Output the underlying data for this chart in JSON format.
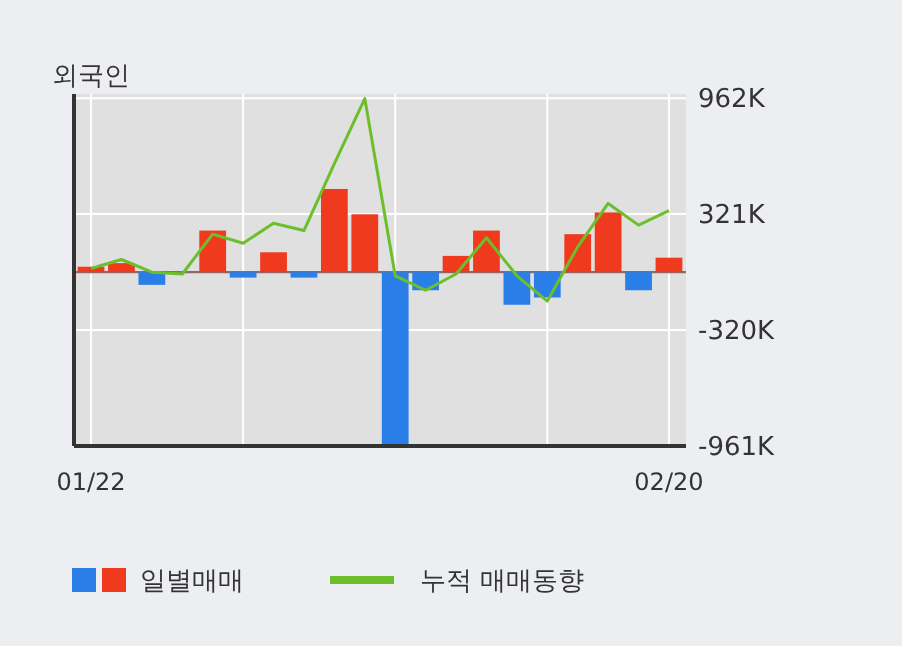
{
  "chart_data": {
    "type": "bar",
    "title": "외국인",
    "categories": [
      "01/22",
      null,
      null,
      null,
      null,
      null,
      null,
      null,
      null,
      null,
      null,
      null,
      null,
      null,
      null,
      null,
      null,
      null,
      null,
      "02/20"
    ],
    "series": [
      {
        "name": "일별매매",
        "colors": [
          "#f03a1e",
          "#f03a1e",
          "#2a7ee8",
          "#f03a1e",
          "#f03a1e",
          "#2a7ee8",
          "#f03a1e",
          "#2a7ee8",
          "#f03a1e",
          "#f03a1e",
          "#2a7ee8",
          "#2a7ee8",
          "#f03a1e",
          "#f03a1e",
          "#2a7ee8",
          "#2a7ee8",
          "#f03a1e",
          "#f03a1e",
          "#2a7ee8",
          "#f03a1e"
        ],
        "values": [
          30000,
          50000,
          -70000,
          0,
          230000,
          -30000,
          110000,
          -30000,
          460000,
          320000,
          -960000,
          -100000,
          90000,
          230000,
          -180000,
          -140000,
          210000,
          330000,
          -100000,
          80000
        ]
      },
      {
        "name": "누적 매매동향",
        "type": "line",
        "color": "#6cbf2a",
        "values": [
          20000,
          70000,
          0,
          -10000,
          210000,
          160000,
          270000,
          230000,
          600000,
          960000,
          -20000,
          -100000,
          -10000,
          190000,
          -20000,
          -160000,
          140000,
          380000,
          260000,
          340000
        ]
      }
    ],
    "ylim": [
      -961000,
      985000
    ],
    "yticks": [
      {
        "value": 962000,
        "label": "962K"
      },
      {
        "value": 321000,
        "label": "321K"
      },
      {
        "value": -320000,
        "label": "-320K"
      },
      {
        "value": -961000,
        "label": "-961K"
      }
    ],
    "grid": true,
    "legend": "bottom",
    "marker": "none",
    "line_style": "solid"
  }
}
